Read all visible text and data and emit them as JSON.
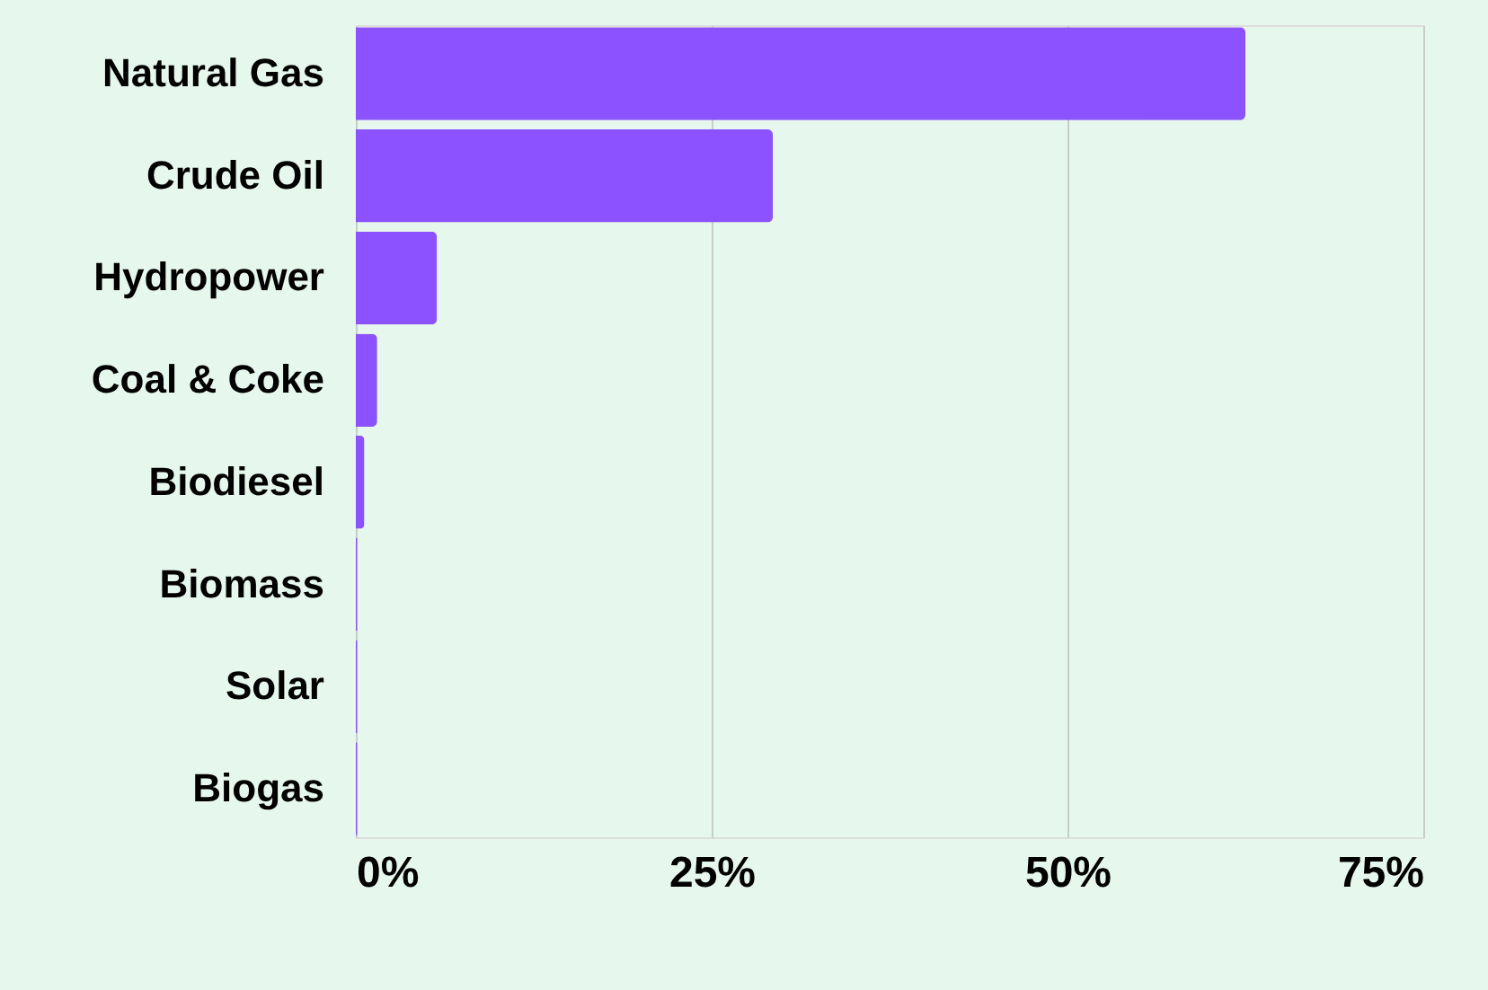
{
  "chart_data": {
    "type": "bar",
    "orientation": "horizontal",
    "categories": [
      "Natural Gas",
      "Crude Oil",
      "Hydropower",
      "Coal & Coke",
      "Biodiesel",
      "Biomass",
      "Solar",
      "Biogas"
    ],
    "values": [
      62.5,
      29.3,
      5.7,
      1.5,
      0.6,
      0.1,
      0.1,
      0.1
    ],
    "color": "#8c52ff",
    "xlim": [
      0,
      75
    ],
    "xticks": [
      {
        "value": 0,
        "label": "0%"
      },
      {
        "value": 25,
        "label": "25%"
      },
      {
        "value": 50,
        "label": "50%"
      },
      {
        "value": 75,
        "label": "75%"
      }
    ],
    "grid": "x"
  }
}
